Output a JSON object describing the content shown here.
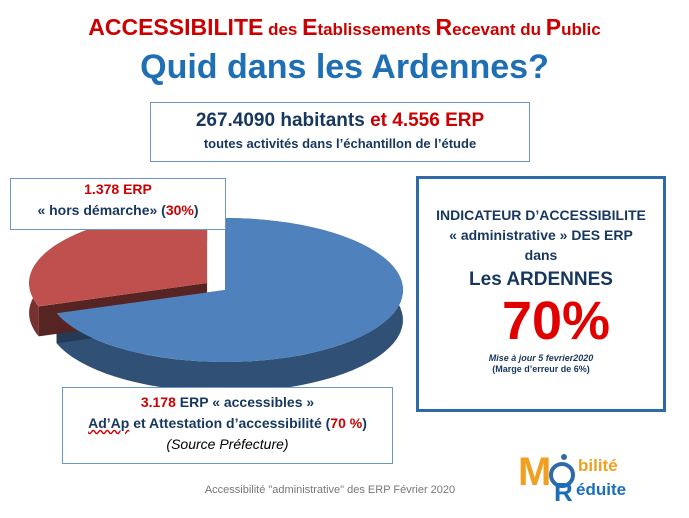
{
  "title": {
    "line1_parts": [
      {
        "text": "ACCESSIBILITE",
        "size": "big"
      },
      {
        "text": " des ",
        "size": "small"
      },
      {
        "text": "E",
        "size": "big"
      },
      {
        "text": "tablissements ",
        "size": "small"
      },
      {
        "text": "R",
        "size": "big"
      },
      {
        "text": "ecevant du ",
        "size": "small"
      },
      {
        "text": "P",
        "size": "big"
      },
      {
        "text": "ublic",
        "size": "small"
      }
    ],
    "line2": "Quid dans les Ardennes?"
  },
  "summary": {
    "inhabitants": "267.4090 habitants",
    "connector": "et",
    "erp_total": "4.556 ERP",
    "line2": "toutes activités dans l’échantillon de l’étude"
  },
  "chart_data": {
    "type": "pie",
    "slices": [
      {
        "label": "« accessibles »",
        "value": 3178,
        "percent": 70,
        "color": "#4f81bd"
      },
      {
        "label": "« hors démarche »",
        "value": 1378,
        "percent": 30,
        "color": "#c0504d"
      }
    ]
  },
  "label_hors": {
    "count": "1.378 ERP",
    "text_open": "« hors démarche» (",
    "percent": "30%",
    "text_close": ")"
  },
  "label_acc": {
    "count": "3.178",
    "line1_rest": " ERP « accessibles »",
    "adap": "Ad’Ap",
    "line2_mid": " et Attestation d’accessibilité (",
    "percent": "70 %",
    "line2_close": ")",
    "source": "(Source Préfecture)"
  },
  "indicator": {
    "line1": "INDICATEUR D’ACCESSIBILITE",
    "line2": "« administrative » DES ERP",
    "line3": "dans",
    "region": "Les ARDENNES",
    "percent": "70%",
    "date": "Mise à  jour 5 fevrier2020",
    "margin": "(Marge d’erreur de 6%)"
  },
  "footer": "Accessibilité \"administrative\" des ERP Février 2020",
  "logo": {
    "text_top": "bilité",
    "text_bottom": "éduite",
    "letter_m": "M",
    "letter_r": "R"
  },
  "colors": {
    "accent_red": "#cc0000",
    "title_blue": "#1f6fb5",
    "navy": "#17375e",
    "pie_blue": "#4f81bd",
    "pie_red": "#c0504d"
  }
}
